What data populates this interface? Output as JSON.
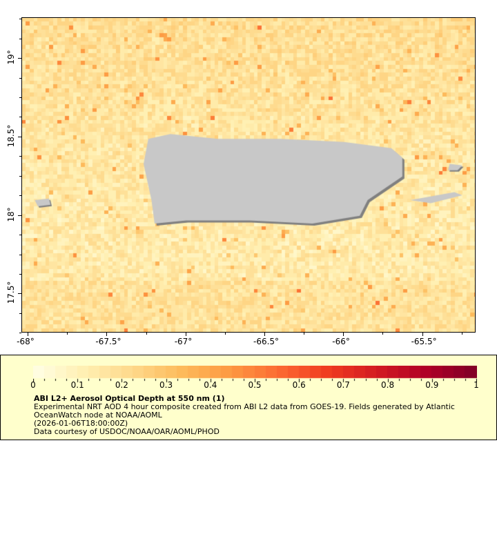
{
  "map": {
    "variable": "AOD",
    "lon_range": [
      -68.04,
      -65.17
    ],
    "lat_range": [
      17.26,
      19.26
    ],
    "land_color": "#c8c8c8",
    "nodata_color": "#808080",
    "x_ticks": [
      "-68°",
      "-67.5°",
      "-67°",
      "-66.5°",
      "-66°",
      "-65.5°"
    ],
    "x_tick_values": [
      -68,
      -67.5,
      -67,
      -66.5,
      -66,
      -65.5
    ],
    "y_ticks": [
      "19°",
      "18.5°",
      "18°",
      "17.5°"
    ],
    "y_tick_values": [
      19,
      18.5,
      18,
      17.5
    ]
  },
  "legend": {
    "colorbar_range": [
      0,
      1
    ],
    "colorbar_labels": [
      "0",
      "0.1",
      "0.2",
      "0.3",
      "0.4",
      "0.5",
      "0.6",
      "0.7",
      "0.8",
      "0.9",
      "1"
    ],
    "colormap_stops": [
      "#ffffe6",
      "#fff0b3",
      "#fed98b",
      "#fdbb5c",
      "#fd9a42",
      "#fc6a32",
      "#f03b20",
      "#d21a22",
      "#b00026",
      "#800026"
    ],
    "title": "ABI L2+ Aerosol Optical Depth at 550 nm (1)",
    "line1": "Experimental NRT AOD 4 hour composite created from ABI L2 data from GOES-19. Fields generated by Atlantic",
    "line2": "OceanWatch node at NOAA/AOML",
    "line3": "(2026-01-06T18:00:00Z)",
    "line4": "Data courtesy of USDOC/NOAA/OAR/AOML/PHOD"
  }
}
